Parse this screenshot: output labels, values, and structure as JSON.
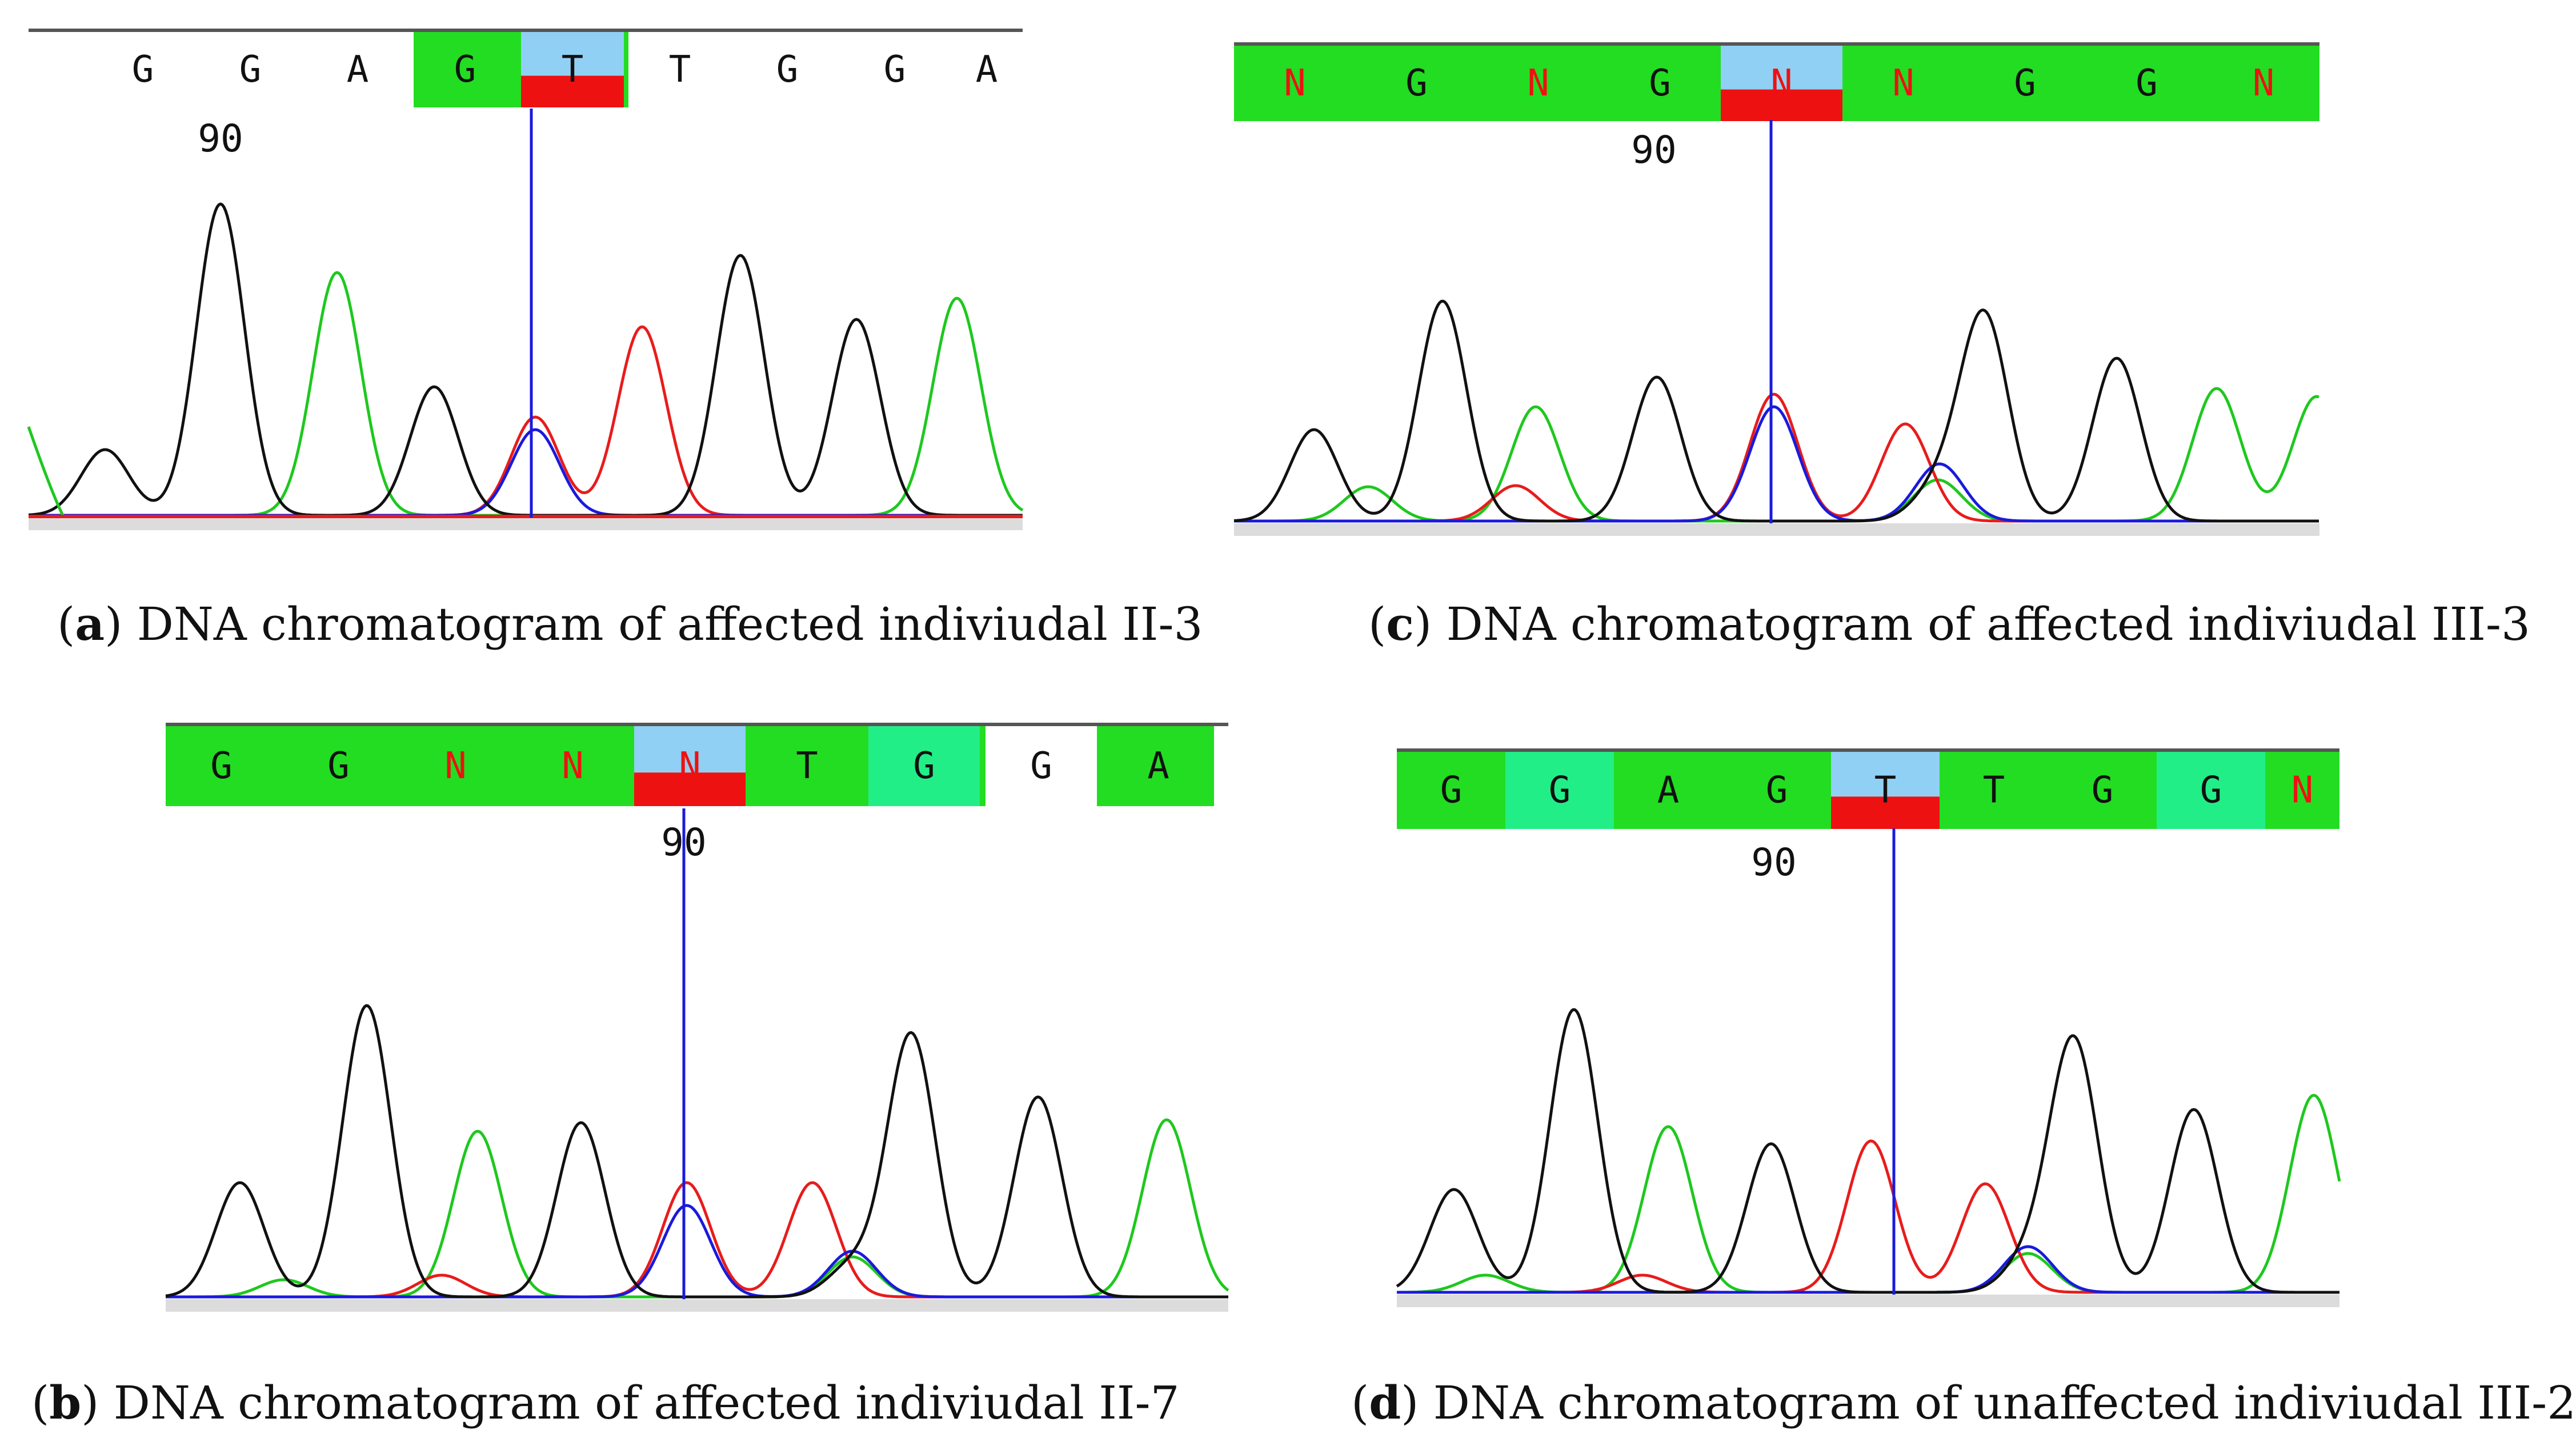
{
  "colors": {
    "A": "#1ec81e",
    "C": "#1a1adc",
    "G": "#111111",
    "T": "#e81c1c",
    "call_green": "#22dd22",
    "call_light_green": "#22ee88",
    "call_white": "#ffffff",
    "highlight_top": "#90d0f4",
    "highlight_bottom": "#ee1111",
    "cursor": "#1a1adc",
    "baseline": "#dcdcdc",
    "base_text_default": "#111111",
    "base_text_N": "#ee1111"
  },
  "panels": [
    {
      "id": "a",
      "position_label": "90",
      "caption_letter": "a",
      "caption_text": "DNA chromatogram of affected indiviudal II-3",
      "bases": [
        {
          "letter": "G",
          "bg": "none"
        },
        {
          "letter": "G",
          "bg": "none"
        },
        {
          "letter": "A",
          "bg": "none"
        },
        {
          "letter": "G",
          "bg": "green"
        },
        {
          "letter": "T",
          "bg": "highlight"
        },
        {
          "letter": "T",
          "bg": "none"
        },
        {
          "letter": "G",
          "bg": "none"
        },
        {
          "letter": "G",
          "bg": "none"
        },
        {
          "letter": "A",
          "bg": "none"
        }
      ]
    },
    {
      "id": "c",
      "position_label": "90",
      "caption_letter": "c",
      "caption_text": "DNA chromatogram of affected indiviudal III-3",
      "bases": [
        {
          "letter": "N",
          "bg": "green"
        },
        {
          "letter": "G",
          "bg": "green"
        },
        {
          "letter": "N",
          "bg": "green"
        },
        {
          "letter": "G",
          "bg": "green"
        },
        {
          "letter": "N",
          "bg": "highlight"
        },
        {
          "letter": "N",
          "bg": "green"
        },
        {
          "letter": "G",
          "bg": "green"
        },
        {
          "letter": "G",
          "bg": "green"
        },
        {
          "letter": "N",
          "bg": "green"
        }
      ]
    },
    {
      "id": "b",
      "position_label": "90",
      "caption_letter": "b",
      "caption_text": "DNA chromatogram of affected indiviudal II-7",
      "bases": [
        {
          "letter": "G",
          "bg": "green"
        },
        {
          "letter": "G",
          "bg": "green"
        },
        {
          "letter": "N",
          "bg": "green"
        },
        {
          "letter": "N",
          "bg": "green"
        },
        {
          "letter": "N",
          "bg": "highlight"
        },
        {
          "letter": "T",
          "bg": "green"
        },
        {
          "letter": "G",
          "bg": "lightgreen"
        },
        {
          "letter": "G",
          "bg": "white"
        },
        {
          "letter": "A",
          "bg": "green"
        }
      ]
    },
    {
      "id": "d",
      "position_label": "90",
      "caption_letter": "d",
      "caption_text": "DNA chromatogram of unaffected indiviudal III-2",
      "bases": [
        {
          "letter": "G",
          "bg": "green"
        },
        {
          "letter": "G",
          "bg": "lightgreen"
        },
        {
          "letter": "A",
          "bg": "green"
        },
        {
          "letter": "G",
          "bg": "green"
        },
        {
          "letter": "T",
          "bg": "highlight"
        },
        {
          "letter": "T",
          "bg": "green"
        },
        {
          "letter": "G",
          "bg": "green"
        },
        {
          "letter": "G",
          "bg": "lightgreen"
        },
        {
          "letter": "N",
          "bg": "green"
        }
      ]
    }
  ]
}
